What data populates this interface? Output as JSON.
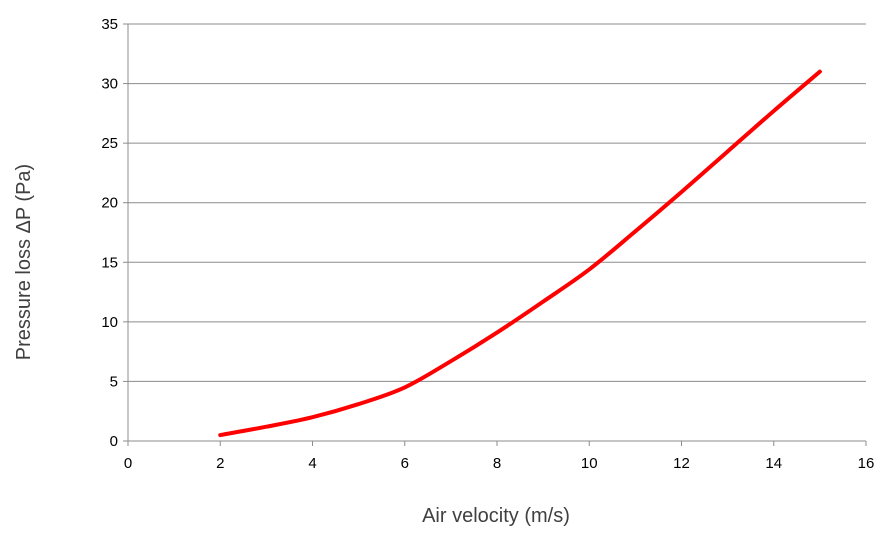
{
  "chart_data": {
    "type": "line",
    "xlabel": "Air velocity (m/s)",
    "ylabel": "Pressure loss ΔP (Pa)",
    "xlim": [
      0,
      16
    ],
    "ylim": [
      0,
      35
    ],
    "x_ticks": [
      0,
      2,
      4,
      6,
      8,
      10,
      12,
      14,
      16
    ],
    "y_ticks": [
      0,
      5,
      10,
      15,
      20,
      25,
      30,
      35
    ],
    "grid": "horizontal",
    "series": [
      {
        "color": "#ff0000",
        "x": [
          2,
          3,
          4,
          5,
          6,
          7,
          8,
          9,
          10,
          11,
          12,
          13,
          14,
          15
        ],
        "y": [
          0.5,
          1.2,
          2.0,
          3.1,
          4.5,
          6.7,
          9.1,
          11.7,
          14.4,
          17.6,
          20.9,
          24.3,
          27.7,
          31.0
        ]
      }
    ]
  }
}
